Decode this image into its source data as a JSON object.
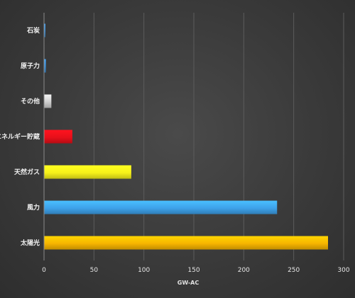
{
  "chart_data": {
    "type": "bar",
    "orientation": "horizontal",
    "categories": [
      "石炭",
      "原子力",
      "その他",
      "エネルギー貯蔵",
      "天然ガス",
      "風力",
      "太陽光"
    ],
    "values": [
      1,
      1.5,
      7,
      28,
      87,
      233,
      284
    ],
    "colors": [
      "#3b8fd8",
      "#3b8fd8",
      "#d0d0d0",
      "#e8101a",
      "#f7f21a",
      "#3ea2ea",
      "#f7b500"
    ],
    "title": "",
    "xlabel": "GW-AC",
    "ylabel": "",
    "xlim": [
      0,
      300
    ],
    "xticks": [
      0,
      50,
      100,
      150,
      200,
      250,
      300
    ],
    "grid": "vertical",
    "legend": "none"
  }
}
